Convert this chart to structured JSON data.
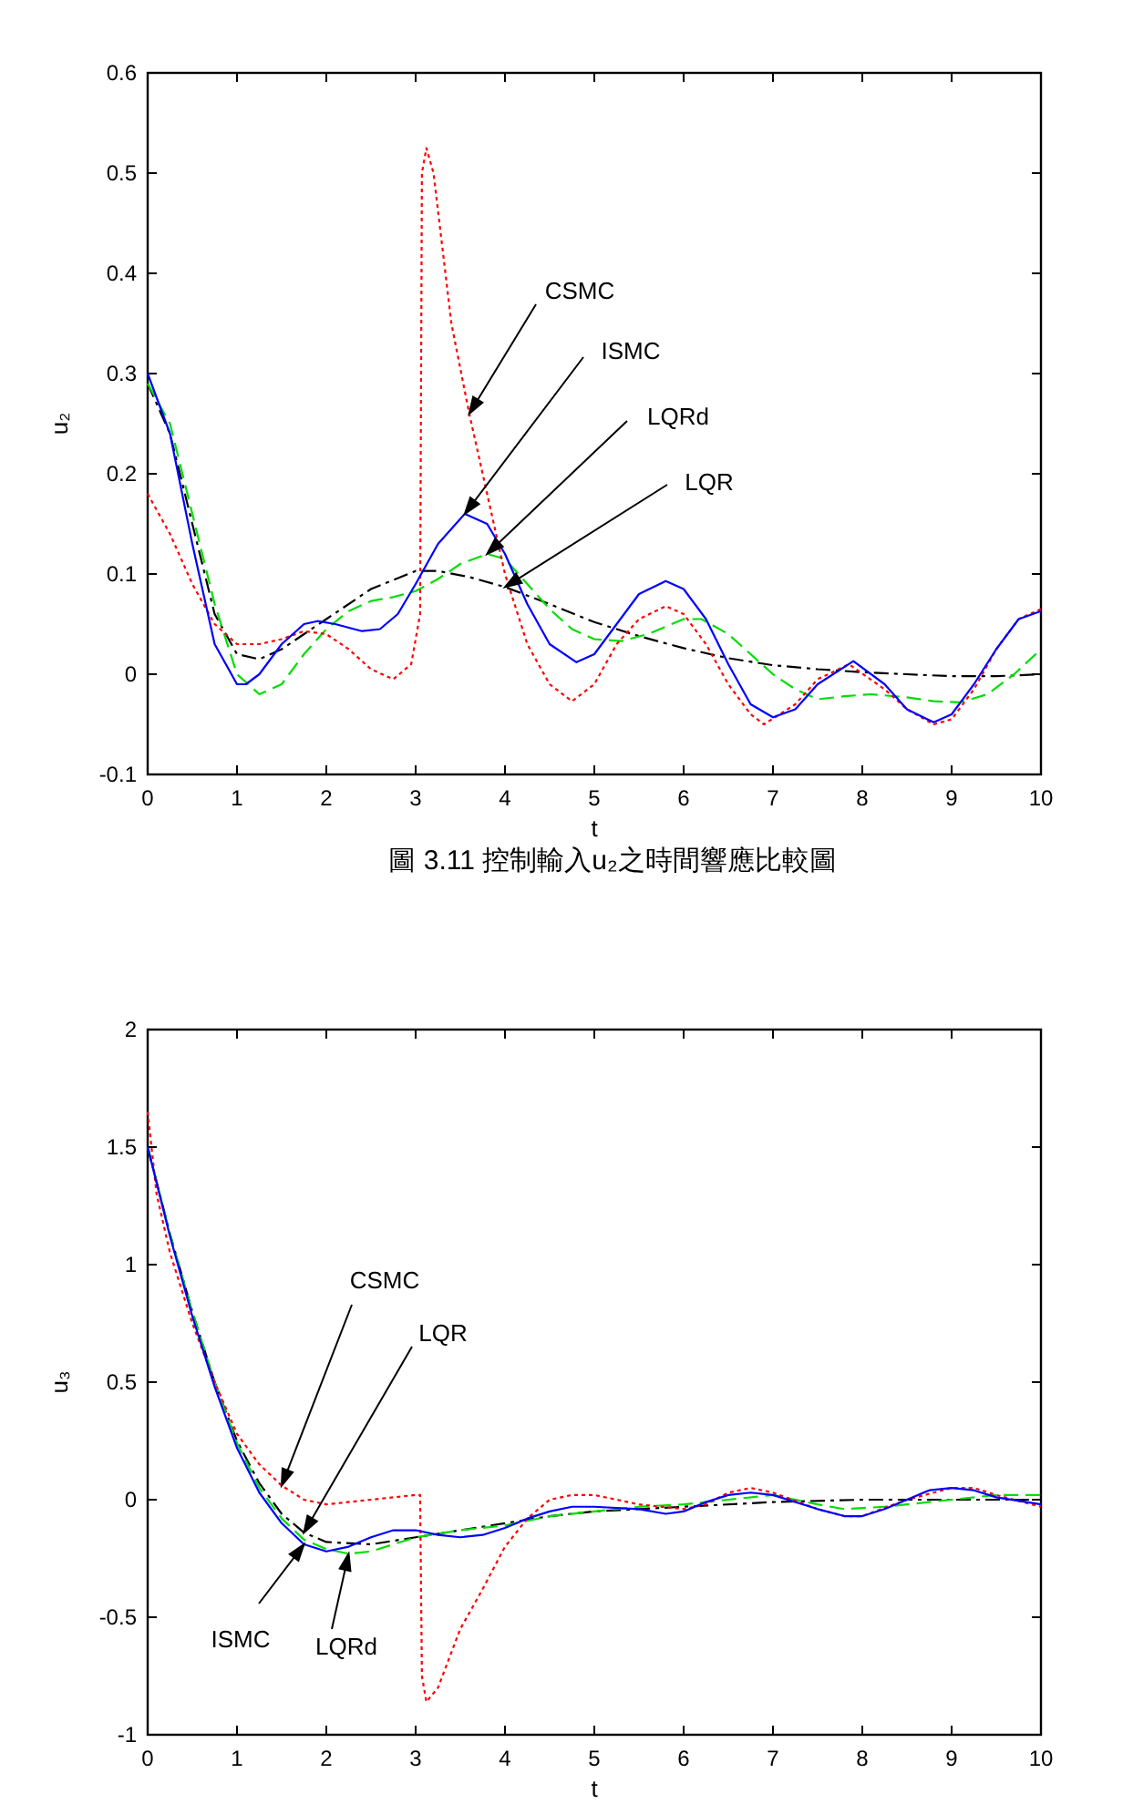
{
  "chart_data": [
    {
      "type": "line",
      "xlabel": "t",
      "ylabel": "u₂",
      "xlim": [
        0,
        10
      ],
      "ylim": [
        -0.1,
        0.6
      ],
      "xticks": [
        0,
        1,
        2,
        3,
        4,
        5,
        6,
        7,
        8,
        9,
        10
      ],
      "yticks": [
        -0.1,
        0,
        0.1,
        0.2,
        0.3,
        0.4,
        0.5,
        0.6
      ],
      "grid": false,
      "series": [
        {
          "color": "#000000",
          "line_style": "dashdot",
          "x": [
            0,
            0.25,
            0.5,
            0.75,
            1,
            1.25,
            1.5,
            1.75,
            2,
            2.5,
            3,
            3.25,
            3.6,
            4,
            4.5,
            5,
            5.5,
            6,
            6.5,
            7,
            7.5,
            8,
            8.5,
            9,
            9.5,
            10
          ],
          "values": [
            0.29,
            0.24,
            0.15,
            0.06,
            0.02,
            0.015,
            0.025,
            0.04,
            0.055,
            0.085,
            0.103,
            0.103,
            0.097,
            0.087,
            0.07,
            0.052,
            0.038,
            0.026,
            0.016,
            0.009,
            0.005,
            0.002,
            0,
            -0.002,
            -0.002,
            0
          ]
        },
        {
          "color": "#00dd00",
          "line_style": "dashed",
          "x": [
            0,
            0.25,
            0.5,
            0.75,
            1,
            1.25,
            1.5,
            1.75,
            2,
            2.25,
            2.5,
            2.75,
            3,
            3.25,
            3.5,
            3.8,
            4,
            4.25,
            4.5,
            4.75,
            5,
            5.3,
            5.6,
            6,
            6.2,
            6.5,
            6.75,
            7,
            7.25,
            7.5,
            7.8,
            8.1,
            8.5,
            8.8,
            9.1,
            9.4,
            9.7,
            10
          ],
          "values": [
            0.29,
            0.25,
            0.16,
            0.07,
            0,
            -0.02,
            -0.01,
            0.02,
            0.045,
            0.063,
            0.073,
            0.077,
            0.083,
            0.095,
            0.11,
            0.12,
            0.115,
            0.09,
            0.065,
            0.045,
            0.035,
            0.033,
            0.04,
            0.055,
            0.055,
            0.04,
            0.02,
            0,
            -0.015,
            -0.025,
            -0.022,
            -0.02,
            -0.023,
            -0.027,
            -0.028,
            -0.02,
            0,
            0.025
          ]
        },
        {
          "color": "#ff0000",
          "line_style": "dotted",
          "x": [
            0,
            0.25,
            0.5,
            0.75,
            1,
            1.25,
            1.5,
            1.75,
            2,
            2.25,
            2.5,
            2.75,
            2.95,
            3.05,
            3.07,
            3.12,
            3.2,
            3.4,
            3.6,
            3.8,
            4,
            4.25,
            4.5,
            4.75,
            5,
            5.25,
            5.5,
            5.8,
            6,
            6.25,
            6.5,
            6.75,
            6.9,
            7.25,
            7.5,
            7.85,
            8.25,
            8.5,
            8.8,
            9,
            9.25,
            9.5,
            9.75,
            10
          ],
          "values": [
            0.18,
            0.14,
            0.09,
            0.05,
            0.03,
            0.03,
            0.035,
            0.043,
            0.04,
            0.025,
            0.005,
            -0.005,
            0.01,
            0.06,
            0.5,
            0.525,
            0.5,
            0.35,
            0.26,
            0.18,
            0.1,
            0.03,
            -0.01,
            -0.027,
            -0.01,
            0.03,
            0.055,
            0.068,
            0.06,
            0.03,
            -0.01,
            -0.04,
            -0.05,
            -0.03,
            -0.005,
            0.01,
            -0.015,
            -0.035,
            -0.05,
            -0.045,
            -0.015,
            0.025,
            0.055,
            0.065
          ]
        },
        {
          "color": "#0000ff",
          "line_style": "solid",
          "x": [
            0,
            0.25,
            0.5,
            0.75,
            1,
            1.1,
            1.25,
            1.5,
            1.75,
            1.9,
            2.1,
            2.4,
            2.6,
            2.8,
            3,
            3.25,
            3.55,
            3.8,
            4,
            4.25,
            4.5,
            4.8,
            5,
            5.25,
            5.5,
            5.8,
            6,
            6.25,
            6.5,
            6.75,
            7,
            7.25,
            7.5,
            7.9,
            8.25,
            8.5,
            8.8,
            9,
            9.25,
            9.5,
            9.75,
            10
          ],
          "values": [
            0.3,
            0.24,
            0.13,
            0.03,
            -0.01,
            -0.01,
            0,
            0.03,
            0.05,
            0.053,
            0.05,
            0.043,
            0.045,
            0.06,
            0.09,
            0.13,
            0.16,
            0.15,
            0.12,
            0.07,
            0.03,
            0.012,
            0.02,
            0.05,
            0.08,
            0.093,
            0.085,
            0.055,
            0.01,
            -0.03,
            -0.043,
            -0.035,
            -0.01,
            0.013,
            -0.01,
            -0.035,
            -0.048,
            -0.04,
            -0.01,
            0.025,
            0.055,
            0.063
          ]
        }
      ],
      "annotations": [
        {
          "text": "CSMC",
          "x": 3.6,
          "y": 0.26
        },
        {
          "text": "ISMC",
          "x": 3.55,
          "y": 0.16
        },
        {
          "text": "LQRd",
          "x": 3.8,
          "y": 0.12
        },
        {
          "text": "LQR",
          "x": 4,
          "y": 0.087
        },
        "圖 3.11 控制輸入u₂之時間響應比較圖"
      ]
    },
    {
      "type": "line",
      "xlabel": "t",
      "ylabel": "u₃",
      "xlim": [
        0,
        10
      ],
      "ylim": [
        -1,
        2
      ],
      "xticks": [
        0,
        1,
        2,
        3,
        4,
        5,
        6,
        7,
        8,
        9,
        10
      ],
      "yticks": [
        -1,
        -0.5,
        0,
        0.5,
        1,
        1.5,
        2
      ],
      "grid": false,
      "series": [
        {
          "color": "#000000",
          "line_style": "dashdot",
          "x": [
            0,
            0.25,
            0.5,
            0.75,
            1,
            1.25,
            1.5,
            1.75,
            2,
            2.5,
            3,
            3.5,
            4,
            4.5,
            5,
            6,
            7,
            8,
            9,
            10
          ],
          "values": [
            1.5,
            1.13,
            0.8,
            0.5,
            0.25,
            0.07,
            -0.06,
            -0.14,
            -0.18,
            -0.19,
            -0.16,
            -0.13,
            -0.1,
            -0.07,
            -0.05,
            -0.03,
            -0.01,
            0,
            0,
            0
          ]
        },
        {
          "color": "#00dd00",
          "line_style": "dashed",
          "x": [
            0,
            0.25,
            0.5,
            0.75,
            1,
            1.25,
            1.5,
            1.75,
            2,
            2.25,
            2.5,
            2.75,
            3,
            3.5,
            4,
            4.5,
            5,
            5.5,
            6,
            6.5,
            7,
            7.5,
            7.8,
            8.25,
            8.5,
            9,
            9.5,
            10
          ],
          "values": [
            1.5,
            1.13,
            0.8,
            0.5,
            0.24,
            0.05,
            -0.08,
            -0.17,
            -0.21,
            -0.23,
            -0.22,
            -0.19,
            -0.16,
            -0.13,
            -0.11,
            -0.07,
            -0.05,
            -0.03,
            -0.02,
            0,
            0.02,
            -0.02,
            -0.04,
            -0.03,
            -0.02,
            0,
            0.02,
            0.02
          ]
        },
        {
          "color": "#ff0000",
          "line_style": "dotted",
          "x": [
            0,
            0.1,
            0.25,
            0.5,
            0.75,
            1,
            1.25,
            1.5,
            1.75,
            2,
            2.5,
            3,
            3.05,
            3.07,
            3.12,
            3.25,
            3.5,
            3.75,
            4,
            4.25,
            4.5,
            4.75,
            5,
            5.5,
            6,
            6.25,
            6.5,
            6.75,
            7,
            7.5,
            7.8,
            8,
            8.5,
            9,
            9.25,
            9.5,
            10
          ],
          "values": [
            1.65,
            1.3,
            1.05,
            0.75,
            0.5,
            0.28,
            0.15,
            0.06,
            0,
            -0.02,
            0,
            0.02,
            0.02,
            -0.75,
            -0.86,
            -0.8,
            -0.55,
            -0.38,
            -0.2,
            -0.08,
            0,
            0.02,
            0.02,
            -0.02,
            -0.04,
            -0.02,
            0.03,
            0.05,
            0.03,
            -0.04,
            -0.07,
            -0.07,
            0,
            0.05,
            0.05,
            0.02,
            -0.03
          ]
        },
        {
          "color": "#0000ff",
          "line_style": "solid",
          "x": [
            0,
            0.25,
            0.5,
            0.75,
            1,
            1.25,
            1.5,
            1.75,
            2,
            2.25,
            2.5,
            2.75,
            3,
            3.25,
            3.5,
            3.75,
            4,
            4.25,
            4.5,
            4.75,
            5,
            5.5,
            5.8,
            6,
            6.25,
            6.5,
            6.75,
            7,
            7.5,
            7.8,
            8,
            8.25,
            8.5,
            8.75,
            9,
            9.25,
            9.5,
            10
          ],
          "values": [
            1.5,
            1.12,
            0.78,
            0.48,
            0.22,
            0.03,
            -0.1,
            -0.19,
            -0.22,
            -0.2,
            -0.16,
            -0.13,
            -0.13,
            -0.15,
            -0.16,
            -0.15,
            -0.12,
            -0.08,
            -0.05,
            -0.03,
            -0.03,
            -0.04,
            -0.06,
            -0.05,
            -0.01,
            0.02,
            0.03,
            0.02,
            -0.04,
            -0.07,
            -0.07,
            -0.04,
            0,
            0.04,
            0.05,
            0.04,
            0.01,
            -0.02
          ]
        }
      ],
      "annotations": [
        {
          "text": "CSMC",
          "x": 1.5,
          "y": 0.06
        },
        {
          "text": "LQR",
          "x": 1.75,
          "y": -0.14
        },
        {
          "text": "ISMC",
          "x": 1.75,
          "y": -0.19
        },
        {
          "text": "LQRd",
          "x": 2.25,
          "y": -0.23
        }
      ]
    }
  ]
}
